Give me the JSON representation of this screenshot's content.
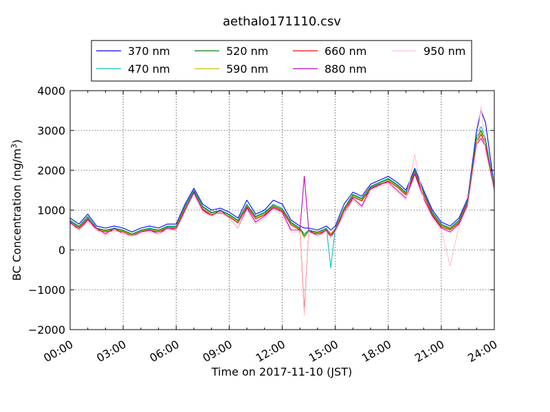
{
  "chart_data": {
    "type": "line",
    "title": "aethalo171110.csv",
    "xlabel": "Time on 2017-11-10 (JST)",
    "ylabel": "BC Concentration (ng/m",
    "ylabel_sup": "3",
    "ylabel_close": ")",
    "xlim": [
      0,
      24
    ],
    "ylim": [
      -2000,
      4000
    ],
    "xticks": [
      0,
      3,
      6,
      9,
      12,
      15,
      18,
      21,
      24
    ],
    "xtick_labels": [
      "00:00",
      "03:00",
      "06:00",
      "09:00",
      "12:00",
      "15:00",
      "18:00",
      "21:00",
      "24:00"
    ],
    "yticks": [
      -2000,
      -1000,
      0,
      1000,
      2000,
      3000,
      4000
    ],
    "ytick_labels": [
      "−2000",
      "−1000",
      "0",
      "1000",
      "2000",
      "3000",
      "4000"
    ],
    "grid": true,
    "legend_position": "top",
    "x": [
      0,
      0.5,
      1,
      1.5,
      2,
      2.5,
      3,
      3.5,
      4,
      4.5,
      5,
      5.5,
      6,
      6.5,
      7,
      7.5,
      8,
      8.5,
      9,
      9.5,
      10,
      10.5,
      11,
      11.5,
      12,
      12.5,
      13,
      13.25,
      13.5,
      14,
      14.5,
      14.75,
      15,
      15.5,
      16,
      16.5,
      17,
      17.5,
      18,
      18.5,
      19,
      19.5,
      20,
      20.5,
      21,
      21.5,
      22,
      22.5,
      23,
      23.25,
      23.5,
      24
    ],
    "series": [
      {
        "name": "370 nm",
        "color": "#0000ff",
        "values": [
          800,
          650,
          900,
          600,
          550,
          600,
          550,
          450,
          550,
          600,
          550,
          650,
          650,
          1150,
          1550,
          1150,
          1000,
          1050,
          950,
          800,
          1250,
          900,
          1000,
          1250,
          1150,
          750,
          600,
          550,
          550,
          500,
          600,
          500,
          600,
          1150,
          1450,
          1350,
          1650,
          1750,
          1850,
          1700,
          1500,
          2050,
          1500,
          1000,
          700,
          600,
          800,
          1300,
          3000,
          3500,
          3200,
          1600
        ]
      },
      {
        "name": "470 nm",
        "color": "#00bfbf",
        "values": [
          750,
          600,
          850,
          550,
          500,
          550,
          500,
          400,
          500,
          550,
          500,
          600,
          600,
          1100,
          1500,
          1100,
          950,
          1000,
          900,
          750,
          1150,
          850,
          950,
          1150,
          1050,
          700,
          550,
          400,
          500,
          450,
          550,
          -450,
          550,
          1050,
          1400,
          1300,
          1600,
          1700,
          1800,
          1650,
          1450,
          2000,
          1450,
          950,
          650,
          550,
          750,
          1250,
          2850,
          3100,
          2800,
          1600
        ]
      },
      {
        "name": "520 nm",
        "color": "#008000",
        "values": [
          720,
          580,
          820,
          540,
          490,
          530,
          490,
          390,
          490,
          530,
          490,
          580,
          580,
          1080,
          1480,
          1080,
          930,
          980,
          880,
          730,
          1120,
          830,
          930,
          1120,
          1020,
          680,
          540,
          350,
          490,
          440,
          530,
          400,
          530,
          1030,
          1380,
          1280,
          1580,
          1680,
          1780,
          1630,
          1430,
          1980,
          1430,
          930,
          630,
          540,
          730,
          1230,
          2800,
          3000,
          2750,
          1550
        ]
      },
      {
        "name": "590 nm",
        "color": "#bfbf00",
        "values": [
          700,
          560,
          800,
          520,
          470,
          510,
          470,
          370,
          470,
          510,
          470,
          560,
          560,
          1050,
          1450,
          1050,
          900,
          950,
          850,
          700,
          1100,
          800,
          900,
          1100,
          1000,
          650,
          520,
          300,
          470,
          420,
          510,
          380,
          510,
          1000,
          1350,
          1250,
          1550,
          1650,
          1750,
          1600,
          1400,
          1950,
          1400,
          900,
          600,
          520,
          700,
          1200,
          2750,
          2950,
          2700,
          1550
        ]
      },
      {
        "name": "660 nm",
        "color": "#ff0000",
        "values": [
          680,
          540,
          780,
          500,
          450,
          490,
          450,
          350,
          450,
          490,
          450,
          540,
          540,
          1020,
          1420,
          1020,
          880,
          930,
          830,
          680,
          1080,
          780,
          880,
          1080,
          980,
          630,
          500,
          -1550,
          450,
          400,
          490,
          360,
          490,
          980,
          1330,
          1230,
          1530,
          1630,
          1730,
          1580,
          1380,
          1930,
          1380,
          880,
          580,
          500,
          680,
          1180,
          2700,
          2900,
          2650,
          1500
        ]
      },
      {
        "name": "880 nm",
        "color": "#bf00bf",
        "values": [
          700,
          500,
          750,
          550,
          400,
          550,
          400,
          350,
          450,
          500,
          400,
          550,
          500,
          1000,
          1450,
          1000,
          850,
          1000,
          800,
          550,
          1050,
          700,
          850,
          1050,
          950,
          500,
          500,
          1850,
          500,
          350,
          500,
          300,
          500,
          900,
          1300,
          1100,
          1550,
          1650,
          1700,
          1500,
          1300,
          1900,
          1300,
          850,
          550,
          450,
          650,
          1150,
          2650,
          2800,
          2600,
          1500
        ]
      },
      {
        "name": "950 nm",
        "color": "#ffc0cb",
        "values": [
          650,
          500,
          700,
          500,
          350,
          500,
          400,
          350,
          400,
          450,
          400,
          500,
          500,
          950,
          1400,
          950,
          850,
          950,
          800,
          550,
          1000,
          650,
          800,
          1000,
          900,
          450,
          450,
          -1650,
          450,
          350,
          450,
          300,
          450,
          900,
          1250,
          1050,
          1500,
          1600,
          1650,
          1450,
          1250,
          2400,
          1250,
          800,
          500,
          -400,
          600,
          1100,
          2600,
          3600,
          2500,
          1450
        ]
      }
    ]
  }
}
